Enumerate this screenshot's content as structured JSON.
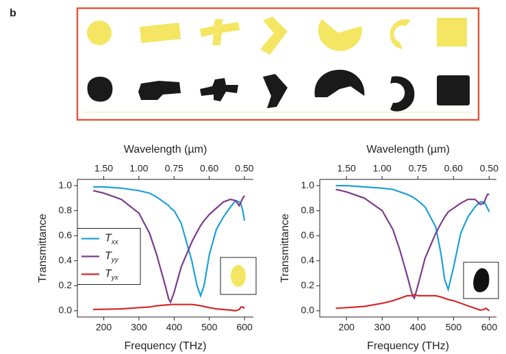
{
  "panel_label": "b",
  "chart_data": [
    {
      "type": "line",
      "xlabel": "Frequency (THz)",
      "x2label": "Wavelength (µm)",
      "ylabel": "Transmittance",
      "x": [
        170,
        200,
        250,
        300,
        330,
        350,
        370,
        385,
        390,
        400,
        420,
        450,
        465,
        475,
        485,
        500,
        520,
        540,
        560,
        575,
        585,
        590,
        595,
        600
      ],
      "series": [
        {
          "name": "Txx",
          "color": "#1ca0d8",
          "values": [
            0.99,
            0.99,
            0.98,
            0.96,
            0.94,
            0.91,
            0.87,
            0.84,
            0.82,
            0.8,
            0.7,
            0.4,
            0.2,
            0.12,
            0.2,
            0.45,
            0.65,
            0.75,
            0.83,
            0.88,
            0.87,
            0.85,
            0.8,
            0.72
          ]
        },
        {
          "name": "Tyy",
          "color": "#7b3a8c",
          "values": [
            0.96,
            0.94,
            0.89,
            0.78,
            0.62,
            0.45,
            0.25,
            0.09,
            0.07,
            0.15,
            0.35,
            0.55,
            0.63,
            0.68,
            0.72,
            0.77,
            0.82,
            0.87,
            0.89,
            0.88,
            0.84,
            0.87,
            0.9,
            0.92
          ]
        },
        {
          "name": "Tyx",
          "color": "#d4282a",
          "values": [
            0.01,
            0.012,
            0.015,
            0.025,
            0.03,
            0.04,
            0.045,
            0.048,
            0.05,
            0.05,
            0.05,
            0.05,
            0.045,
            0.04,
            0.035,
            0.025,
            0.015,
            0.01,
            0.005,
            0.0,
            0.01,
            0.03,
            0.03,
            0.02
          ]
        }
      ],
      "xlim": [
        125,
        625
      ],
      "xticks": [
        200,
        300,
        400,
        500,
        600
      ],
      "x2ticks": [
        {
          "value": 1.5,
          "label": "1.50"
        },
        {
          "value": 1.0,
          "label": "1.00"
        },
        0.75,
        {
          "value": 0.6,
          "label": "0.60"
        },
        {
          "value": 0.5,
          "label": "0.50"
        }
      ],
      "ylim": [
        -0.05,
        1.05
      ],
      "yticks": [
        {
          "value": 0,
          "label": "0.0"
        },
        0.2,
        0.4,
        0.6,
        0.8,
        {
          "value": 1,
          "label": "1.0"
        }
      ],
      "legend": "center left"
    },
    {
      "type": "line",
      "xlabel": "Frequency (THz)",
      "x2label": "Wavelength (µm)",
      "ylabel": "Transmittance",
      "x": [
        170,
        200,
        250,
        300,
        330,
        350,
        370,
        385,
        390,
        400,
        420,
        450,
        465,
        475,
        485,
        500,
        520,
        540,
        560,
        575,
        585,
        590,
        595,
        600
      ],
      "series": [
        {
          "name": "Txx",
          "color": "#1ca0d8",
          "values": [
            1.0,
            1.0,
            0.99,
            0.98,
            0.97,
            0.95,
            0.93,
            0.91,
            0.9,
            0.88,
            0.83,
            0.67,
            0.45,
            0.25,
            0.17,
            0.35,
            0.62,
            0.75,
            0.83,
            0.87,
            0.87,
            0.85,
            0.82,
            0.79
          ]
        },
        {
          "name": "Tyy",
          "color": "#7b3a8c",
          "values": [
            0.97,
            0.95,
            0.9,
            0.8,
            0.65,
            0.48,
            0.28,
            0.12,
            0.1,
            0.2,
            0.42,
            0.62,
            0.7,
            0.75,
            0.79,
            0.82,
            0.86,
            0.89,
            0.89,
            0.85,
            0.86,
            0.9,
            0.93,
            0.93
          ]
        },
        {
          "name": "Tyx",
          "color": "#d4282a",
          "values": [
            0.02,
            0.025,
            0.035,
            0.06,
            0.08,
            0.1,
            0.12,
            0.12,
            0.13,
            0.12,
            0.12,
            0.12,
            0.11,
            0.1,
            0.09,
            0.08,
            0.06,
            0.04,
            0.02,
            0.005,
            0.01,
            0.02,
            0.01,
            0.0
          ]
        }
      ],
      "xlim": [
        125,
        620
      ],
      "xticks": [
        200,
        300,
        400,
        500,
        600
      ],
      "x2ticks": [
        {
          "value": 1.5,
          "label": "1.50"
        },
        {
          "value": 1.0,
          "label": "1.00"
        },
        0.75,
        {
          "value": 0.6,
          "label": "0.60"
        },
        {
          "value": 0.5,
          "label": "0.50"
        }
      ],
      "ylim": [
        -0.05,
        1.05
      ],
      "yticks": [
        {
          "value": 0,
          "label": "0.0"
        },
        0.2,
        0.4,
        0.6,
        0.8,
        {
          "value": 1,
          "label": "1.0"
        }
      ]
    }
  ]
}
